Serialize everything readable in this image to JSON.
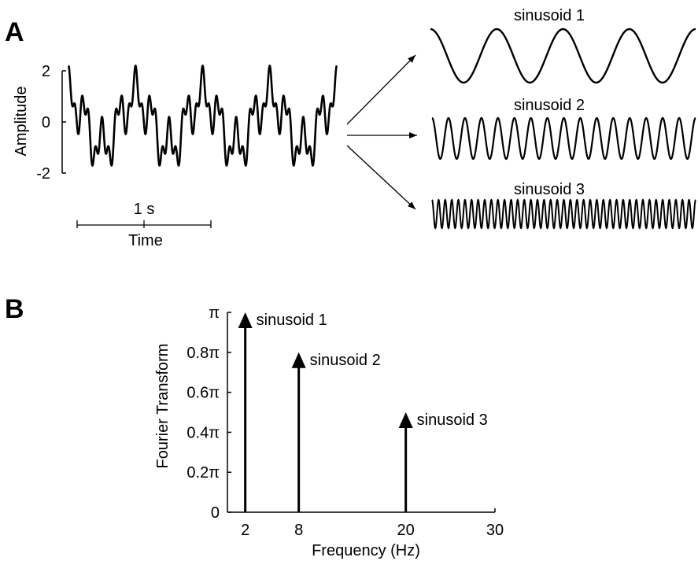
{
  "panels": {
    "a": "A",
    "b": "B"
  },
  "panel_a": {
    "ylabel": "Amplitude",
    "yticks": [
      "2",
      "0",
      "-2"
    ],
    "scalebar_label": "1 s",
    "xlabel": "Time",
    "sinusoid_labels": [
      "sinusoid 1",
      "sinusoid 2",
      "sinusoid 3"
    ]
  },
  "chart_data": [
    {
      "type": "line",
      "panel": "A",
      "xlabel": "Time",
      "ylabel": "Amplitude",
      "ylim": [
        -2,
        2
      ],
      "yticks": [
        -2,
        0,
        2
      ],
      "scalebar": "1 s",
      "components_hz": [
        2,
        8,
        20
      ],
      "components_amplitude": [
        1,
        0.75,
        0.45
      ],
      "duration_s": 2
    },
    {
      "type": "bar",
      "panel": "B",
      "title": "",
      "xlabel": "Frequency (Hz)",
      "ylabel": "Fourier Transform",
      "xlim": [
        0,
        30
      ],
      "ylim": [
        0,
        1
      ],
      "xticks": [
        "2",
        "8",
        "20",
        "30"
      ],
      "yticks": [
        "0",
        "0.2π",
        "0.4π",
        "0.6π",
        "0.8π",
        "π"
      ],
      "categories": [
        2,
        8,
        20
      ],
      "values": [
        1.0,
        0.8,
        0.5
      ],
      "value_unit": "π",
      "annotations": [
        "sinusoid 1",
        "sinusoid 2",
        "sinusoid 3"
      ]
    }
  ]
}
